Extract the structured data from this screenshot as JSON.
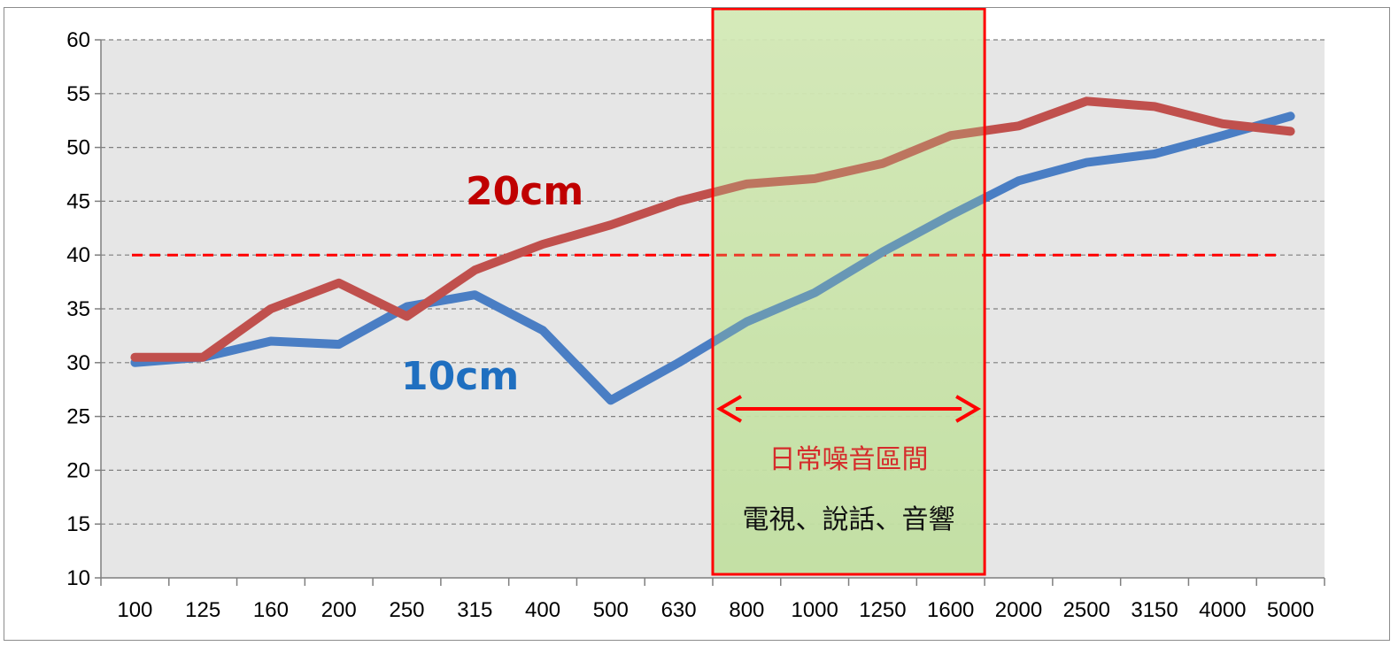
{
  "chart_data": {
    "type": "line",
    "categories": [
      "100",
      "125",
      "160",
      "200",
      "250",
      "315",
      "400",
      "500",
      "630",
      "800",
      "1000",
      "1250",
      "1600",
      "2000",
      "2500",
      "3150",
      "4000",
      "5000"
    ],
    "ylim": [
      10,
      60
    ],
    "yticks": [
      "10",
      "15",
      "20",
      "25",
      "30",
      "35",
      "40",
      "45",
      "50",
      "55",
      "60"
    ],
    "grid": true,
    "series": [
      {
        "name": "10cm",
        "color": "#4a7ec4",
        "values": [
          30.0,
          30.5,
          32.0,
          31.7,
          35.2,
          36.3,
          33.0,
          26.5,
          30.0,
          33.8,
          36.5,
          40.3,
          43.7,
          46.9,
          48.6,
          49.4,
          51.1,
          52.9
        ]
      },
      {
        "name": "20cm",
        "color": "#c0504d",
        "values": [
          30.5,
          30.5,
          35.0,
          37.4,
          34.3,
          38.6,
          41.0,
          42.8,
          45.0,
          46.6,
          47.1,
          48.5,
          51.1,
          52.0,
          54.3,
          53.8,
          52.2,
          51.5
        ]
      }
    ],
    "reference_line": {
      "value": 40,
      "color": "#ff0000",
      "style": "dashed"
    },
    "labels": {
      "series_10cm": "10cm",
      "series_20cm": "20cm",
      "series_10cm_color": "#1f6fc0",
      "series_20cm_color": "#c00000"
    },
    "highlight_region": {
      "from_category": "800",
      "to_category": "2000",
      "fill": "#c6e3a8",
      "border": "#ff0000",
      "title": "日常噪音區間",
      "subtitle": "電視、說話、音響",
      "title_color": "#d52b2b"
    }
  }
}
